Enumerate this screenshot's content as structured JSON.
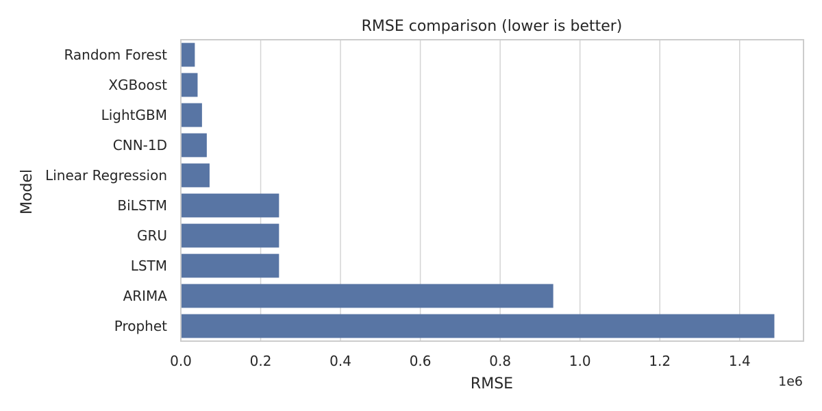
{
  "chart_data": {
    "type": "bar",
    "orientation": "horizontal",
    "title": "RMSE comparison (lower is better)",
    "xlabel": "RMSE",
    "ylabel": "Model",
    "x_offset_label": "1e6",
    "categories": [
      "Random Forest",
      "XGBoost",
      "LightGBM",
      "CNN-1D",
      "Linear Regression",
      "BiLSTM",
      "GRU",
      "LSTM",
      "ARIMA",
      "Prophet"
    ],
    "values": [
      35000,
      42000,
      53000,
      65000,
      72000,
      246000,
      246000,
      246000,
      933000,
      1487000
    ],
    "xlim": [
      0,
      1560000
    ],
    "x_ticks": [
      0,
      200000,
      400000,
      600000,
      800000,
      1000000,
      1200000,
      1400000
    ],
    "x_tick_labels": [
      "0.0",
      "0.2",
      "0.4",
      "0.6",
      "0.8",
      "1.0",
      "1.2",
      "1.4"
    ],
    "grid": true,
    "grid_axis": "x",
    "bar_color": "#5875a4"
  }
}
